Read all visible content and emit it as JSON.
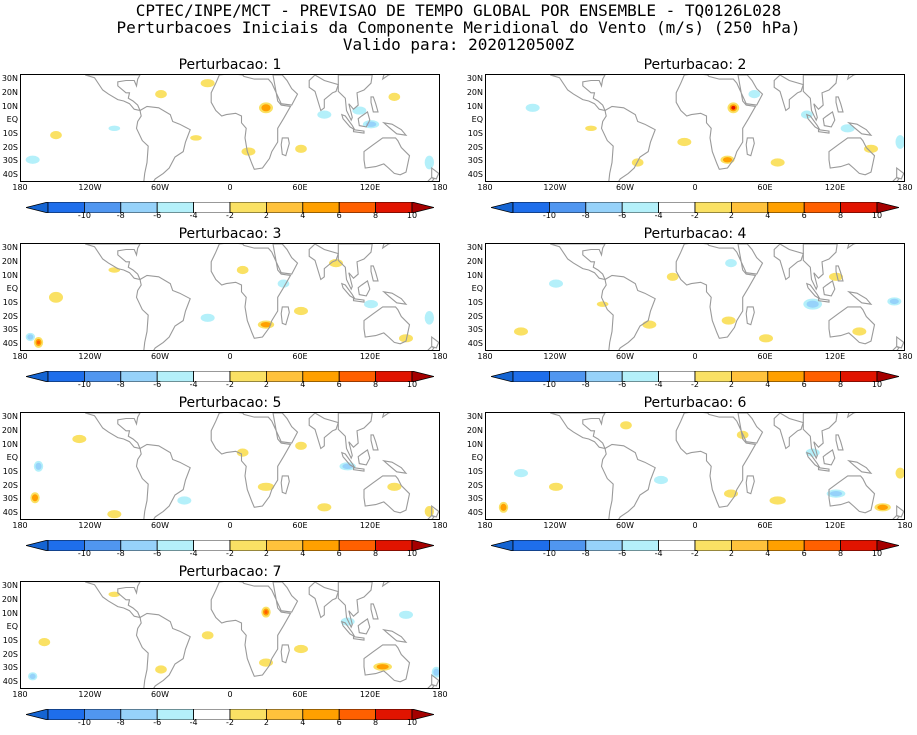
{
  "header": {
    "line1": "CPTEC/INPE/MCT - PREVISAO DE TEMPO GLOBAL POR ENSEMBLE - TQ0126L028",
    "line2": "Perturbacoes Iniciais da Componente Meridional do Vento (m/s) (250 hPa)",
    "line3": "Valido para: 2020120500Z"
  },
  "lat_labels": [
    "30N",
    "20N",
    "10N",
    "EQ",
    "10S",
    "20S",
    "30S",
    "40S"
  ],
  "lon_labels": [
    "180",
    "120W",
    "60W",
    "0",
    "60E",
    "120E",
    "180"
  ],
  "colorbar": {
    "labels": [
      "-10",
      "-8",
      "-6",
      "-4",
      "-2",
      "2",
      "4",
      "6",
      "8",
      "10"
    ],
    "colors": [
      "#1464d2",
      "#1e6eeb",
      "#5096f0",
      "#96d2fa",
      "#b4f0fa",
      "#ffffff",
      "#fae164",
      "#ffc23c",
      "#ffa000",
      "#ff6000",
      "#e11400",
      "#a50000"
    ]
  },
  "panels": [
    {
      "title": "Perturbacao: 1"
    },
    {
      "title": "Perturbacao: 2"
    },
    {
      "title": "Perturbacao: 3"
    },
    {
      "title": "Perturbacao: 4"
    },
    {
      "title": "Perturbacao: 5"
    },
    {
      "title": "Perturbacao: 6"
    },
    {
      "title": "Perturbacao: 7"
    }
  ]
}
